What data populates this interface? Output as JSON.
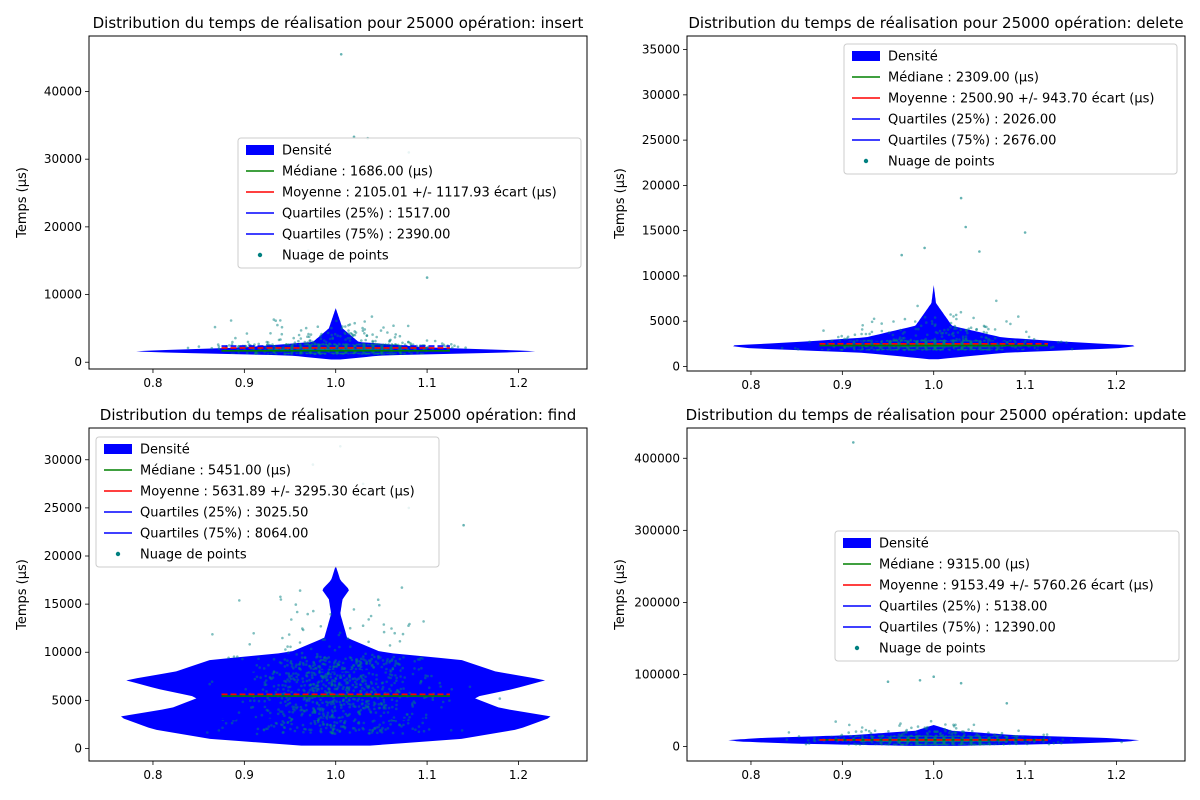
{
  "figure": {
    "background": "#ffffff",
    "colors": {
      "density": "#0000ff",
      "density_alpha": 0.27,
      "points": "#008080",
      "median": "#008000",
      "mean": "#ff0000",
      "quartiles": "#0000ff"
    }
  },
  "chart_data": [
    {
      "type": "violin",
      "title": "Distribution du temps de réalisation pour 25000 opération: insert",
      "xlabel": "",
      "ylabel": "Temps (µs)",
      "xlim": [
        0.73,
        1.275
      ],
      "ylim": [
        -1000,
        48200
      ],
      "xticks": [
        0.8,
        0.9,
        1.0,
        1.1,
        1.2
      ],
      "xtick_labels": [
        "0.8",
        "0.9",
        "1.0",
        "1.1",
        "1.2"
      ],
      "yticks": [
        0,
        10000,
        20000,
        30000,
        40000
      ],
      "grid": false,
      "legend_position": "right",
      "median": 1686.0,
      "mean": 2105.01,
      "std": 1117.93,
      "q25": 1517.0,
      "q75": 2390.0,
      "n_points": 25000,
      "max_value": 45500,
      "density_profile": [
        [
          400,
          0.02
        ],
        [
          1000,
          0.2
        ],
        [
          1400,
          0.7
        ],
        [
          1600,
          0.9
        ],
        [
          1800,
          0.75
        ],
        [
          2200,
          0.4
        ],
        [
          3000,
          0.1
        ],
        [
          5000,
          0.03
        ],
        [
          8000,
          0.0
        ]
      ],
      "outliers": [
        [
          1.006,
          45500
        ],
        [
          1.02,
          33300
        ],
        [
          1.035,
          33100
        ],
        [
          1.08,
          31000
        ],
        [
          0.97,
          16500
        ],
        [
          1.1,
          12500
        ]
      ],
      "legend": [
        "Densité",
        "Médiane : 1686.00 (µs)",
        "Moyenne : 2105.01 +/- 1117.93 écart (µs)",
        "Quartiles (25%) : 1517.00",
        "Quartiles (75%) : 2390.00",
        "Nuage de points"
      ]
    },
    {
      "type": "violin",
      "title": "Distribution du temps de réalisation pour 25000 opération: delete",
      "xlabel": "",
      "ylabel": "Temps (µs)",
      "xlim": [
        0.73,
        1.275
      ],
      "ylim": [
        -500,
        36500
      ],
      "xticks": [
        0.8,
        0.9,
        1.0,
        1.1,
        1.2
      ],
      "xtick_labels": [
        "0.8",
        "0.9",
        "1.0",
        "1.1",
        "1.2"
      ],
      "yticks": [
        0,
        5000,
        10000,
        15000,
        20000,
        25000,
        30000,
        35000
      ],
      "grid": false,
      "legend_position": "top-right",
      "median": 2309.0,
      "mean": 2500.9,
      "std": 943.7,
      "q25": 2026.0,
      "q75": 2676.0,
      "n_points": 25000,
      "max_value": 18600,
      "density_profile": [
        [
          800,
          0.02
        ],
        [
          1500,
          0.3
        ],
        [
          2000,
          0.8
        ],
        [
          2300,
          0.9
        ],
        [
          2700,
          0.6
        ],
        [
          3200,
          0.3
        ],
        [
          4500,
          0.08
        ],
        [
          7000,
          0.01
        ],
        [
          9000,
          0.0
        ]
      ],
      "outliers": [
        [
          1.03,
          18600
        ],
        [
          1.035,
          15400
        ],
        [
          1.1,
          14800
        ],
        [
          0.99,
          13100
        ],
        [
          1.05,
          12700
        ],
        [
          0.965,
          12300
        ]
      ],
      "legend": [
        "Densité",
        "Médiane : 2309.00 (µs)",
        "Moyenne : 2500.90 +/- 943.70 écart (µs)",
        "Quartiles (25%) : 2026.00",
        "Quartiles (75%) : 2676.00",
        "Nuage de points"
      ]
    },
    {
      "type": "violin",
      "title": "Distribution du temps de réalisation pour 25000 opération: find",
      "xlabel": "",
      "ylabel": "Temps (µs)",
      "xlim": [
        0.73,
        1.275
      ],
      "ylim": [
        -1300,
        33300
      ],
      "xticks": [
        0.8,
        0.9,
        1.0,
        1.1,
        1.2
      ],
      "xtick_labels": [
        "0.8",
        "0.9",
        "1.0",
        "1.1",
        "1.2"
      ],
      "yticks": [
        0,
        5000,
        10000,
        15000,
        20000,
        25000,
        30000
      ],
      "grid": false,
      "legend_position": "top-left",
      "median": 5451.0,
      "mean": 5631.89,
      "std": 3295.3,
      "q25": 3025.5,
      "q75": 8064.0,
      "n_points": 25000,
      "max_value": 31400,
      "density_profile": [
        [
          300,
          0.15
        ],
        [
          1000,
          0.55
        ],
        [
          2000,
          0.8
        ],
        [
          3300,
          0.95
        ],
        [
          4200,
          0.72
        ],
        [
          5300,
          0.6
        ],
        [
          6200,
          0.78
        ],
        [
          7100,
          0.92
        ],
        [
          8000,
          0.7
        ],
        [
          9200,
          0.55
        ],
        [
          10000,
          0.2
        ],
        [
          11500,
          0.05
        ],
        [
          14000,
          0.02
        ],
        [
          15500,
          0.03
        ],
        [
          16500,
          0.06
        ],
        [
          17500,
          0.02
        ],
        [
          19000,
          0.0
        ]
      ],
      "outliers": [
        [
          1.005,
          31400
        ],
        [
          0.975,
          29500
        ],
        [
          1.03,
          27500
        ],
        [
          1.08,
          25000
        ],
        [
          0.95,
          24500
        ],
        [
          1.14,
          23200
        ]
      ],
      "legend": [
        "Densité",
        "Médiane : 5451.00 (µs)",
        "Moyenne : 5631.89 +/- 3295.30 écart (µs)",
        "Quartiles (25%) : 3025.50",
        "Quartiles (75%) : 8064.00",
        "Nuage de points"
      ]
    },
    {
      "type": "violin",
      "title": "Distribution du temps de réalisation pour 25000 opération: update",
      "xlabel": "",
      "ylabel": "Temps (µs)",
      "xlim": [
        0.73,
        1.275
      ],
      "ylim": [
        -20000,
        442000
      ],
      "xticks": [
        0.8,
        0.9,
        1.0,
        1.1,
        1.2
      ],
      "xtick_labels": [
        "0.8",
        "0.9",
        "1.0",
        "1.1",
        "1.2"
      ],
      "yticks": [
        0,
        100000,
        200000,
        300000,
        400000
      ],
      "grid": false,
      "legend_position": "right",
      "median": 9315.0,
      "mean": 9153.49,
      "std": 5760.26,
      "q25": 5138.0,
      "q75": 12390.0,
      "n_points": 25000,
      "max_value": 422000,
      "density_profile": [
        [
          1000,
          0.1
        ],
        [
          4000,
          0.6
        ],
        [
          7000,
          0.85
        ],
        [
          9000,
          0.9
        ],
        [
          12000,
          0.75
        ],
        [
          16000,
          0.35
        ],
        [
          22000,
          0.08
        ],
        [
          30000,
          0.0
        ]
      ],
      "outliers": [
        [
          0.912,
          422000
        ],
        [
          1.0,
          97000
        ],
        [
          0.985,
          92000
        ],
        [
          0.95,
          90000
        ],
        [
          1.03,
          88000
        ],
        [
          1.08,
          60000
        ]
      ],
      "legend": [
        "Densité",
        "Médiane : 9315.00 (µs)",
        "Moyenne : 9153.49 +/- 5760.26 écart (µs)",
        "Quartiles (25%) : 5138.00",
        "Quartiles (75%) : 12390.00",
        "Nuage de points"
      ]
    }
  ]
}
